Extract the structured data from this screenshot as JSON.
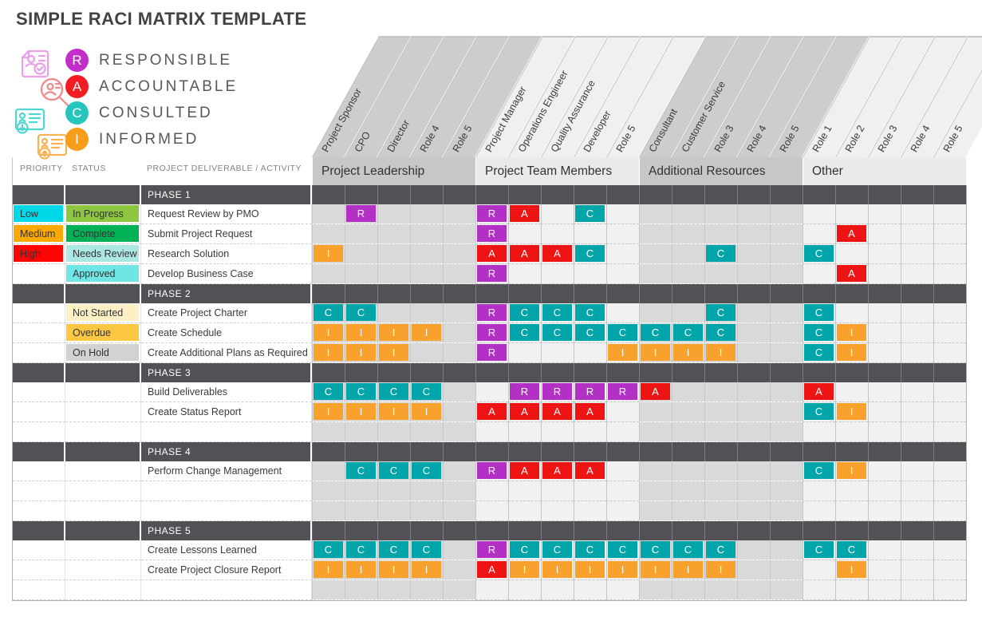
{
  "title": "SIMPLE RACI MATRIX TEMPLATE",
  "legend": {
    "items": [
      {
        "letter": "R",
        "label": "RESPONSIBLE",
        "color": "#c32ec9",
        "icon": "document-check-icon",
        "icon_color": "#eb9fe9"
      },
      {
        "letter": "A",
        "label": "ACCOUNTABLE",
        "color": "#f21c22",
        "icon": "magnifier-person-icon",
        "icon_color": "#f28789"
      },
      {
        "letter": "C",
        "label": "CONSULTED",
        "color": "#26c5bd",
        "icon": "id-card-download-icon",
        "icon_color": "#4ed6cf"
      },
      {
        "letter": "I",
        "label": "INFORMED",
        "color": "#f89c1b",
        "icon": "id-card-upload-icon",
        "icon_color": "#f9b254"
      }
    ]
  },
  "left_headers": {
    "priority": "PRIORITY",
    "status": "STATUS",
    "activity": "PROJECT DELIVERABLE / ACTIVITY"
  },
  "groups": [
    {
      "label": "Project Leadership",
      "shade": "dark",
      "roles": [
        "Project Sponsor",
        "CPO",
        "Director",
        "Role 4",
        "Role 5"
      ]
    },
    {
      "label": "Project Team Members",
      "shade": "light",
      "roles": [
        "Project Manager",
        "Operations Engineer",
        "Quality Assurance",
        "Developer",
        "Role 5"
      ]
    },
    {
      "label": "Additional Resources",
      "shade": "dark",
      "roles": [
        "Consultant",
        "Customer Service",
        "Role 3",
        "Role 4",
        "Role 5"
      ]
    },
    {
      "label": "Other",
      "shade": "light",
      "roles": [
        "Role 1",
        "Role 2",
        "Role 3",
        "Role 4",
        "Role 5"
      ]
    }
  ],
  "raci_colors": {
    "R": "#b231c4",
    "A": "#ee1414",
    "C": "#00a5a9",
    "I": "#f9a12d"
  },
  "priority_colors": {
    "Low": "#00d8e8",
    "Medium": "#fba900",
    "High": "#fe0404"
  },
  "status_colors": {
    "In Progress": "#8dc63f",
    "Complete": "#00b156",
    "Needs Review": "#ace8e3",
    "Approved": "#6fe6e6",
    "Not Started": "#fdf0c5",
    "Overdue": "#fcc844",
    "On Hold": "#d2d2d2"
  },
  "phases": [
    {
      "name": "PHASE 1",
      "rows": [
        {
          "priority": "Low",
          "status": "In Progress",
          "activity": "Request Review by PMO",
          "cells": {
            "2": "R",
            "6": "R",
            "7": "A",
            "9": "C"
          }
        },
        {
          "priority": "Medium",
          "status": "Complete",
          "activity": "Submit Project Request",
          "cells": {
            "6": "R",
            "17": "A"
          }
        },
        {
          "priority": "High",
          "status": "Needs Review",
          "activity": "Research Solution",
          "cells": {
            "1": "I",
            "6": "A",
            "7": "A",
            "8": "A",
            "9": "C",
            "13": "C",
            "16": "C"
          }
        },
        {
          "priority": "",
          "status": "Approved",
          "activity": "Develop Business Case",
          "cells": {
            "6": "R",
            "17": "A"
          }
        }
      ]
    },
    {
      "name": "PHASE 2",
      "rows": [
        {
          "priority": "",
          "status": "Not Started",
          "activity": "Create Project Charter",
          "cells": {
            "1": "C",
            "2": "C",
            "6": "R",
            "7": "C",
            "8": "C",
            "9": "C",
            "13": "C",
            "16": "C"
          }
        },
        {
          "priority": "",
          "status": "Overdue",
          "activity": "Create Schedule",
          "cells": {
            "1": "I",
            "2": "I",
            "3": "I",
            "4": "I",
            "6": "R",
            "7": "C",
            "8": "C",
            "9": "C",
            "10": "C",
            "11": "C",
            "12": "C",
            "13": "C",
            "16": "C",
            "17": "I"
          }
        },
        {
          "priority": "",
          "status": "On Hold",
          "activity": "Create Additional Plans as Required",
          "cells": {
            "1": "I",
            "2": "I",
            "3": "I",
            "6": "R",
            "10": "I",
            "11": "I",
            "12": "I",
            "13": "I",
            "16": "C",
            "17": "I"
          }
        }
      ]
    },
    {
      "name": "PHASE 3",
      "rows": [
        {
          "priority": "",
          "status": "",
          "activity": "Build Deliverables",
          "cells": {
            "1": "C",
            "2": "C",
            "3": "C",
            "4": "C",
            "7": "R",
            "8": "R",
            "9": "R",
            "10": "R",
            "11": "A",
            "16": "A"
          }
        },
        {
          "priority": "",
          "status": "",
          "activity": "Create Status Report",
          "cells": {
            "1": "I",
            "2": "I",
            "3": "I",
            "4": "I",
            "6": "A",
            "7": "A",
            "8": "A",
            "9": "A",
            "16": "C",
            "17": "I"
          }
        },
        {
          "priority": "",
          "status": "",
          "activity": "",
          "cells": {}
        }
      ]
    },
    {
      "name": "PHASE 4",
      "rows": [
        {
          "priority": "",
          "status": "",
          "activity": "Perform Change Management",
          "cells": {
            "2": "C",
            "3": "C",
            "4": "C",
            "6": "R",
            "7": "A",
            "8": "A",
            "9": "A",
            "16": "C",
            "17": "I"
          }
        },
        {
          "priority": "",
          "status": "",
          "activity": "",
          "cells": {}
        },
        {
          "priority": "",
          "status": "",
          "activity": "",
          "cells": {}
        }
      ]
    },
    {
      "name": "PHASE 5",
      "rows": [
        {
          "priority": "",
          "status": "",
          "activity": "Create Lessons Learned",
          "cells": {
            "1": "C",
            "2": "C",
            "3": "C",
            "4": "C",
            "6": "R",
            "7": "C",
            "8": "C",
            "9": "C",
            "10": "C",
            "11": "C",
            "12": "C",
            "13": "C",
            "16": "C",
            "17": "C"
          }
        },
        {
          "priority": "",
          "status": "",
          "activity": "Create Project Closure Report",
          "cells": {
            "1": "I",
            "2": "I",
            "3": "I",
            "4": "I",
            "6": "A",
            "7": "I",
            "8": "I",
            "9": "I",
            "10": "I",
            "11": "I",
            "12": "I",
            "13": "I",
            "17": "I"
          }
        },
        {
          "priority": "",
          "status": "",
          "activity": "",
          "cells": {}
        }
      ]
    }
  ]
}
